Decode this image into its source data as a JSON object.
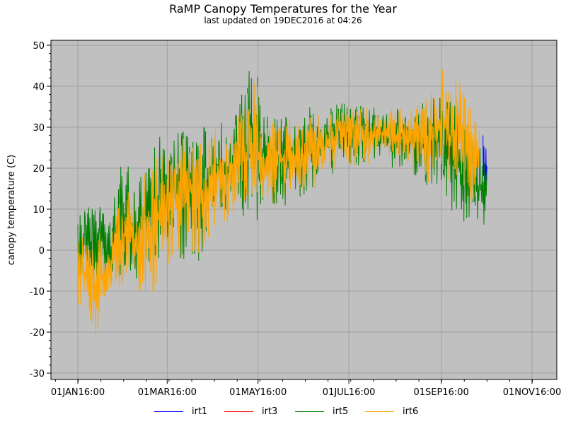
{
  "chart_data": {
    "type": "line",
    "title": "RaMP Canopy Temperatures for the Year",
    "subtitle": "last updated on 19DEC2016 at 04:26",
    "xlabel": "",
    "ylabel": "canopy temperature (C)",
    "ylim": [
      -31,
      52
    ],
    "yticks": [
      -30,
      -20,
      -10,
      0,
      10,
      20,
      30,
      40,
      50
    ],
    "xticks": [
      {
        "label": "01JAN16:00",
        "day": 0
      },
      {
        "label": "01MAR16:00",
        "day": 60
      },
      {
        "label": "01MAY16:00",
        "day": 121
      },
      {
        "label": "01JUL16:00",
        "day": 182
      },
      {
        "label": "01SEP16:00",
        "day": 244
      },
      {
        "label": "01NOV16:00",
        "day": 305
      }
    ],
    "xlim_days": [
      -18,
      325
    ],
    "grid": true,
    "legend_position": "bottom",
    "note": "values are daily temperature ranges [day_of_year, low, high]",
    "series": [
      {
        "name": "irt1",
        "color": "#0000ff",
        "ranges": [
          [
            2,
            -8,
            5
          ],
          [
            10,
            -5,
            2
          ],
          [
            18,
            -5,
            -1
          ],
          [
            55,
            5,
            20
          ],
          [
            75,
            15,
            30
          ],
          [
            272,
            10,
            28
          ],
          [
            275,
            8,
            28
          ]
        ]
      },
      {
        "name": "irt3",
        "color": "#ff0000",
        "ranges": [
          [
            248,
            18,
            30
          ],
          [
            252,
            20,
            28
          ],
          [
            255,
            18,
            25
          ]
        ]
      },
      {
        "name": "irt5",
        "color": "#008000",
        "ranges": [
          [
            0,
            -10,
            10
          ],
          [
            5,
            -5,
            10
          ],
          [
            10,
            -10,
            12
          ],
          [
            15,
            -8,
            17
          ],
          [
            20,
            -10,
            5
          ],
          [
            25,
            -5,
            15
          ],
          [
            30,
            -8,
            22
          ],
          [
            35,
            -5,
            20
          ],
          [
            40,
            -8,
            15
          ],
          [
            45,
            -5,
            25
          ],
          [
            50,
            -8,
            28
          ],
          [
            55,
            -5,
            30
          ],
          [
            60,
            -2,
            25
          ],
          [
            65,
            0,
            28
          ],
          [
            70,
            -3,
            30
          ],
          [
            75,
            0,
            32
          ],
          [
            80,
            -5,
            28
          ],
          [
            85,
            0,
            30
          ],
          [
            90,
            5,
            32
          ],
          [
            95,
            5,
            33
          ],
          [
            100,
            8,
            30
          ],
          [
            105,
            10,
            35
          ],
          [
            110,
            8,
            38
          ],
          [
            115,
            8,
            44
          ],
          [
            120,
            5,
            45
          ],
          [
            125,
            10,
            33
          ],
          [
            130,
            8,
            35
          ],
          [
            135,
            12,
            32
          ],
          [
            140,
            10,
            33
          ],
          [
            145,
            15,
            32
          ],
          [
            150,
            12,
            30
          ],
          [
            155,
            15,
            35
          ],
          [
            160,
            15,
            35
          ],
          [
            165,
            20,
            32
          ],
          [
            170,
            18,
            35
          ],
          [
            175,
            20,
            38
          ],
          [
            180,
            20,
            38
          ],
          [
            185,
            20,
            35
          ],
          [
            190,
            20,
            36
          ],
          [
            195,
            20,
            35
          ],
          [
            200,
            22,
            35
          ],
          [
            205,
            22,
            33
          ],
          [
            210,
            20,
            34
          ],
          [
            215,
            20,
            36
          ],
          [
            220,
            20,
            33
          ],
          [
            225,
            18,
            35
          ],
          [
            230,
            18,
            35
          ],
          [
            235,
            15,
            38
          ],
          [
            240,
            15,
            38
          ],
          [
            245,
            12,
            40
          ],
          [
            250,
            10,
            38
          ],
          [
            255,
            8,
            35
          ],
          [
            260,
            5,
            30
          ],
          [
            265,
            5,
            30
          ],
          [
            270,
            2,
            28
          ],
          [
            275,
            6,
            26
          ]
        ]
      },
      {
        "name": "irt6",
        "color": "#ffa500",
        "ranges": [
          [
            0,
            -13,
            5
          ],
          [
            5,
            -15,
            2
          ],
          [
            10,
            -22,
            0
          ],
          [
            15,
            -20,
            5
          ],
          [
            20,
            -10,
            -2
          ],
          [
            25,
            -8,
            10
          ],
          [
            30,
            -10,
            15
          ],
          [
            35,
            -5,
            18
          ],
          [
            40,
            -10,
            10
          ],
          [
            45,
            -10,
            20
          ],
          [
            50,
            -12,
            20
          ],
          [
            55,
            -5,
            25
          ],
          [
            60,
            -5,
            22
          ],
          [
            65,
            0,
            25
          ],
          [
            70,
            -5,
            27
          ],
          [
            75,
            0,
            30
          ],
          [
            80,
            -3,
            28
          ],
          [
            85,
            0,
            25
          ],
          [
            90,
            5,
            30
          ],
          [
            95,
            5,
            32
          ],
          [
            100,
            5,
            28
          ],
          [
            105,
            10,
            30
          ],
          [
            110,
            8,
            35
          ],
          [
            115,
            10,
            40
          ],
          [
            120,
            5,
            42
          ],
          [
            125,
            10,
            30
          ],
          [
            130,
            5,
            32
          ],
          [
            135,
            15,
            30
          ],
          [
            140,
            10,
            33
          ],
          [
            145,
            15,
            32
          ],
          [
            150,
            12,
            30
          ],
          [
            155,
            15,
            33
          ],
          [
            160,
            15,
            35
          ],
          [
            165,
            20,
            30
          ],
          [
            170,
            18,
            35
          ],
          [
            175,
            20,
            38
          ],
          [
            180,
            22,
            40
          ],
          [
            185,
            20,
            35
          ],
          [
            190,
            22,
            38
          ],
          [
            195,
            20,
            36
          ],
          [
            200,
            22,
            35
          ],
          [
            205,
            25,
            32
          ],
          [
            210,
            22,
            34
          ],
          [
            215,
            20,
            36
          ],
          [
            220,
            22,
            32
          ],
          [
            225,
            18,
            35
          ],
          [
            230,
            20,
            36
          ],
          [
            235,
            15,
            40
          ],
          [
            240,
            18,
            38
          ],
          [
            245,
            20,
            45
          ],
          [
            250,
            15,
            40
          ],
          [
            255,
            18,
            42
          ],
          [
            260,
            15,
            40
          ],
          [
            265,
            10,
            35
          ],
          [
            270,
            15,
            30
          ]
        ]
      }
    ]
  }
}
